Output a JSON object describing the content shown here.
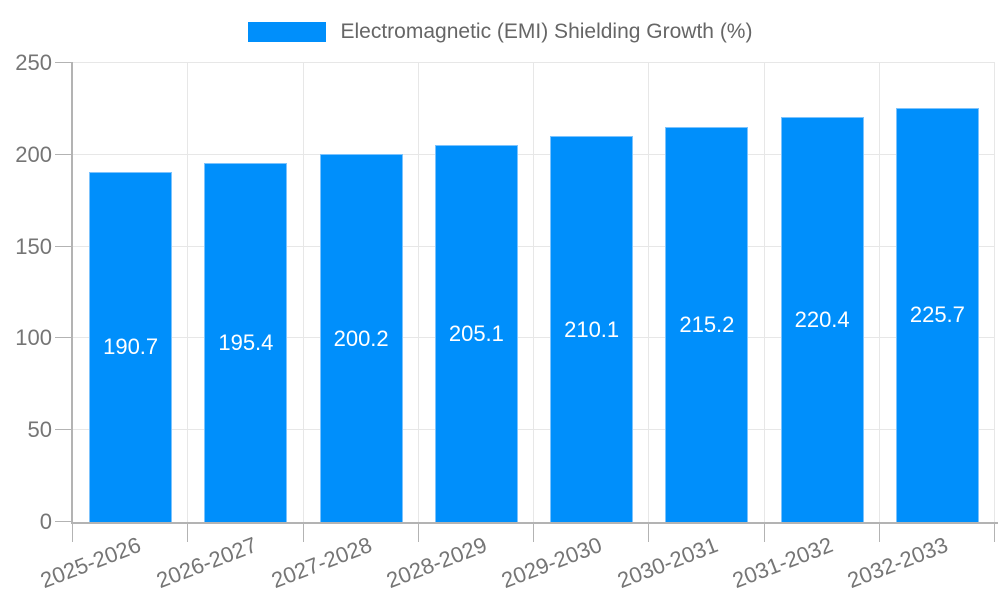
{
  "colors": {
    "bar": "#008FFB",
    "bar_border": "#7cc3fd",
    "axis_line": "#b3b3b3",
    "gridline": "#e7e7e7",
    "axis_text": "#757575",
    "legend_text": "#666666",
    "value_text": "#ffffff",
    "background": "#ffffff"
  },
  "legend": {
    "position": "top",
    "label": "Electromagnetic (EMI) Shielding Growth (%)"
  },
  "chart_data": {
    "type": "bar",
    "title": "Electromagnetic (EMI) Shielding Growth (%)",
    "categories": [
      "2025-2026",
      "2026-2027",
      "2027-2028",
      "2028-2029",
      "2029-2030",
      "2030-2031",
      "2031-2032",
      "2032-2033"
    ],
    "values": [
      190.7,
      195.4,
      200.2,
      205.1,
      210.1,
      215.2,
      220.4,
      225.7
    ],
    "series": [
      {
        "name": "Electromagnetic (EMI) Shielding Growth (%)",
        "values": [
          190.7,
          195.4,
          200.2,
          205.1,
          210.1,
          215.2,
          220.4,
          225.7
        ]
      }
    ],
    "xlabel": "",
    "ylabel": "",
    "ylim": [
      0,
      250
    ],
    "yticks": [
      0,
      50,
      100,
      150,
      200,
      250
    ],
    "grid": true,
    "legend_position": "top",
    "data_labels": true,
    "xtick_rotation_deg": -21
  }
}
